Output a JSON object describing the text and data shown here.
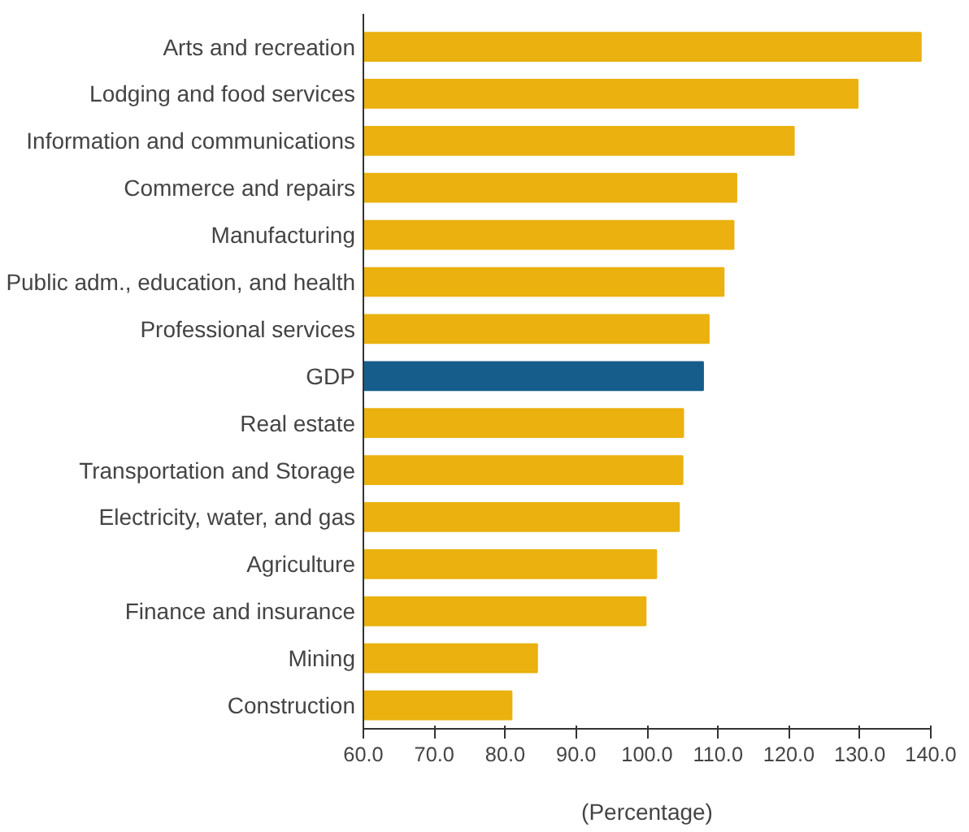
{
  "chart_data": {
    "type": "bar",
    "orientation": "horizontal",
    "xlabel": "(Percentage)",
    "categories": [
      "Arts and recreation",
      "Lodging and food services",
      "Information and communications",
      "Commerce and repairs",
      "Manufacturing",
      "Public adm., education, and health",
      "Professional services",
      "GDP",
      "Real estate",
      "Transportation and Storage",
      "Electricity, water, and gas",
      "Agriculture",
      "Finance and insurance",
      "Mining",
      "Construction"
    ],
    "values": [
      138.6,
      129.7,
      120.7,
      112.6,
      112.2,
      110.8,
      108.7,
      107.9,
      105.1,
      105.0,
      104.5,
      101.3,
      99.8,
      84.5,
      80.9
    ],
    "colors": [
      "#eab10f",
      "#eab10f",
      "#eab10f",
      "#eab10f",
      "#eab10f",
      "#eab10f",
      "#eab10f",
      "#165d8c",
      "#eab10f",
      "#eab10f",
      "#eab10f",
      "#eab10f",
      "#eab10f",
      "#eab10f",
      "#eab10f"
    ],
    "xlim": [
      60,
      140
    ],
    "xticks": [
      {
        "value": 60,
        "label": "60.0"
      },
      {
        "value": 70,
        "label": "70.0"
      },
      {
        "value": 80,
        "label": "80.0"
      },
      {
        "value": 90,
        "label": "90.0"
      },
      {
        "value": 100,
        "label": "100.0"
      },
      {
        "value": 110,
        "label": "110.0"
      },
      {
        "value": 120,
        "label": "120.0"
      },
      {
        "value": 130,
        "label": "130.0"
      },
      {
        "value": 140,
        "label": "140.0"
      }
    ],
    "grid": false
  }
}
